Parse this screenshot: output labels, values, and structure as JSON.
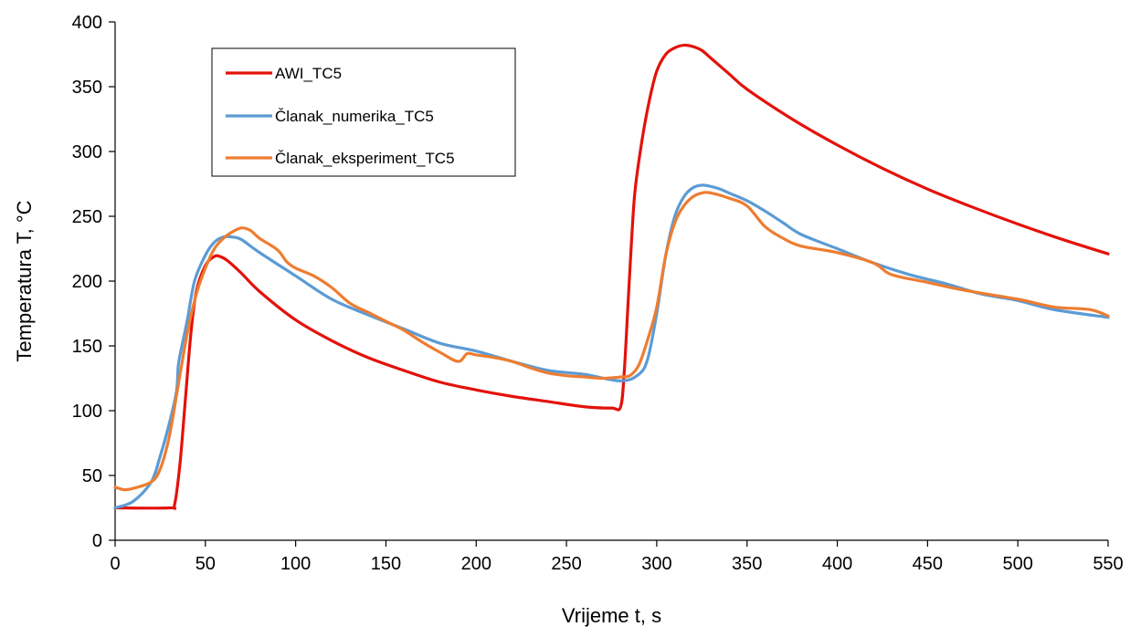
{
  "chart_data": {
    "type": "line",
    "xlabel": "Vrijeme t, s",
    "ylabel": "Temperatura T, °C",
    "xlim": [
      0,
      550
    ],
    "ylim": [
      0,
      400
    ],
    "xticks": [
      0,
      50,
      100,
      150,
      200,
      250,
      300,
      350,
      400,
      450,
      500,
      550
    ],
    "yticks": [
      0,
      50,
      100,
      150,
      200,
      250,
      300,
      350,
      400
    ],
    "grid": false,
    "legend_position": "top-left",
    "series": [
      {
        "name": "AWI_TC5",
        "color": "#e3120b",
        "x": [
          0,
          30,
          33,
          36,
          39,
          42,
          45,
          50,
          55,
          58,
          62,
          70,
          80,
          100,
          120,
          140,
          160,
          180,
          200,
          220,
          240,
          260,
          275,
          280,
          282,
          284,
          286,
          288,
          292,
          296,
          300,
          305,
          310,
          315,
          320,
          325,
          330,
          340,
          350,
          375,
          400,
          425,
          450,
          475,
          500,
          525,
          550
        ],
        "y": [
          25,
          25,
          28,
          60,
          110,
          160,
          192,
          212,
          219,
          219,
          216,
          206,
          192,
          170,
          154,
          141,
          131,
          122,
          116,
          111,
          107,
          103,
          102,
          103,
          130,
          180,
          230,
          270,
          310,
          340,
          362,
          375,
          380,
          382,
          381,
          378,
          372,
          360,
          348,
          325,
          305,
          287,
          271,
          257,
          244,
          232,
          221
        ]
      },
      {
        "name": "Članak_numerika_TC5",
        "color": "#5b9bd5",
        "x": [
          0,
          10,
          20,
          25,
          30,
          34,
          35,
          37,
          40,
          44,
          50,
          55,
          60,
          65,
          70,
          80,
          100,
          120,
          140,
          160,
          180,
          200,
          220,
          240,
          260,
          280,
          290,
          295,
          300,
          305,
          310,
          315,
          320,
          325,
          330,
          335,
          340,
          350,
          360,
          370,
          380,
          400,
          420,
          440,
          460,
          480,
          500,
          520,
          550
        ],
        "y": [
          25,
          30,
          45,
          65,
          90,
          115,
          135,
          150,
          170,
          200,
          220,
          230,
          234,
          234,
          232,
          222,
          204,
          186,
          174,
          163,
          152,
          146,
          138,
          131,
          128,
          123,
          128,
          140,
          175,
          220,
          250,
          265,
          272,
          274,
          273,
          271,
          268,
          262,
          254,
          245,
          236,
          225,
          214,
          205,
          198,
          190,
          185,
          178,
          172
        ]
      },
      {
        "name": "Članak_eksperiment_TC5",
        "color": "#ed7d31",
        "x": [
          0,
          5,
          10,
          20,
          25,
          30,
          35,
          40,
          45,
          50,
          55,
          60,
          65,
          70,
          75,
          80,
          90,
          95,
          100,
          110,
          120,
          130,
          140,
          150,
          160,
          170,
          180,
          190,
          195,
          200,
          210,
          220,
          230,
          240,
          250,
          260,
          270,
          280,
          285,
          290,
          295,
          300,
          305,
          310,
          315,
          320,
          325,
          330,
          340,
          350,
          360,
          370,
          380,
          400,
          420,
          430,
          450,
          470,
          500,
          520,
          540,
          550
        ],
        "y": [
          41,
          39,
          40,
          45,
          55,
          80,
          120,
          160,
          190,
          210,
          225,
          233,
          238,
          241,
          239,
          233,
          224,
          215,
          210,
          204,
          195,
          183,
          176,
          169,
          162,
          153,
          145,
          138,
          144,
          143,
          141,
          138,
          133,
          129,
          127,
          126,
          125,
          126,
          127,
          135,
          155,
          180,
          220,
          245,
          258,
          265,
          268,
          268,
          264,
          258,
          242,
          233,
          227,
          222,
          214,
          205,
          199,
          193,
          186,
          180,
          178,
          173
        ]
      }
    ]
  }
}
